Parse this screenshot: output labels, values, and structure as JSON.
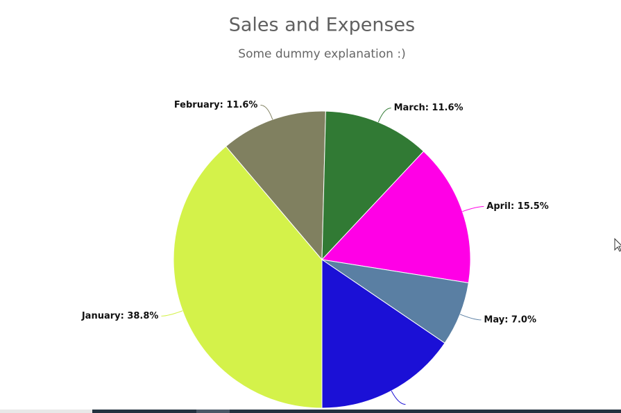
{
  "chart_data": {
    "type": "pie",
    "title": "Sales and Expenses",
    "subtitle": "Some dummy explanation :)",
    "values": [
      38.8,
      11.6,
      11.6,
      15.5,
      7.0,
      15.5
    ],
    "value_labels": [
      "January: 38.8%",
      "February: 11.6%",
      "March: 11.6%",
      "April: 15.5%",
      "May: 7.0%",
      null
    ],
    "colors": [
      "#d4f24a",
      "#808060",
      "#317a34",
      "#ff00e6",
      "#5a7fa3",
      "#1b10d6"
    ]
  }
}
